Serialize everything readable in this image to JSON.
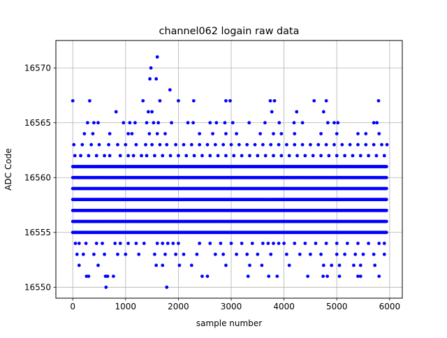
{
  "chart_data": {
    "type": "scatter",
    "title": "channel062 logain raw data",
    "xlabel": "sample number",
    "ylabel": "ADC Code",
    "xlim": [
      -320,
      6240
    ],
    "ylim": [
      16549.0,
      16572.5
    ],
    "xticks": [
      0,
      1000,
      2000,
      3000,
      4000,
      5000,
      6000
    ],
    "yticks": [
      16550,
      16555,
      16560,
      16565,
      16570
    ],
    "xtick_labels": [
      "0",
      "1000",
      "2000",
      "3000",
      "4000",
      "5000",
      "6000"
    ],
    "ytick_labels": [
      "16550",
      "16555",
      "16560",
      "16565",
      "16570"
    ],
    "grid": true,
    "marker_color": "#0000ff",
    "n_samples": 5944,
    "dense_levels": [
      16555,
      16556,
      16557,
      16558,
      16559,
      16560,
      16561
    ],
    "sparse_levels": [
      {
        "y": 16554,
        "xs": [
          50,
          120,
          250,
          450,
          560,
          800,
          900,
          1050,
          1200,
          1350,
          1600,
          1700,
          1800,
          1900,
          2000,
          2400,
          2600,
          2800,
          3000,
          3200,
          3400,
          3600,
          3700,
          3800,
          3900,
          4000,
          4200,
          4400,
          4600,
          4800,
          5000,
          5200,
          5400,
          5600,
          5800,
          5900
        ]
      },
      {
        "y": 16553,
        "xs": [
          80,
          200,
          400,
          600,
          850,
          1000,
          1250,
          1550,
          1750,
          1950,
          2100,
          2350,
          2700,
          2850,
          3100,
          3300,
          3500,
          3750,
          4050,
          4300,
          4500,
          4700,
          5000,
          5150,
          5350,
          5500,
          5700,
          5900
        ]
      },
      {
        "y": 16552,
        "xs": [
          120,
          480,
          1580,
          1700,
          2020,
          2250,
          2900,
          3350,
          3580,
          4100,
          4750,
          4900,
          5050,
          5320,
          5450,
          5720
        ]
      },
      {
        "y": 16551,
        "xs": [
          260,
          300,
          620,
          660,
          770,
          2450,
          2550,
          3320,
          3710,
          3870,
          4450,
          4740,
          4820,
          5050,
          5400,
          5450,
          5800
        ]
      },
      {
        "y": 16550,
        "xs": [
          630,
          1780
        ]
      },
      {
        "y": 16562,
        "xs": [
          40,
          150,
          300,
          450,
          600,
          700,
          900,
          1050,
          1150,
          1300,
          1400,
          1550,
          1700,
          1850,
          2000,
          2150,
          2300,
          2450,
          2600,
          2750,
          2900,
          3050,
          3200,
          3350,
          3500,
          3650,
          3800,
          3950,
          4100,
          4250,
          4400,
          4550,
          4700,
          4850,
          5000,
          5150,
          5300,
          5450,
          5600,
          5750,
          5900
        ]
      },
      {
        "y": 16563,
        "xs": [
          20,
          180,
          350,
          500,
          680,
          850,
          1000,
          1200,
          1380,
          1500,
          1650,
          1780,
          1950,
          2100,
          2250,
          2400,
          2550,
          2700,
          2850,
          3000,
          3150,
          3300,
          3450,
          3600,
          3750,
          3900,
          4050,
          4200,
          4350,
          4500,
          4650,
          4800,
          4950,
          5100,
          5250,
          5400,
          5550,
          5700,
          5850,
          5950
        ]
      },
      {
        "y": 16564,
        "xs": [
          220,
          380,
          700,
          1050,
          1120,
          1450,
          1600,
          1750,
          2400,
          2650,
          2900,
          3100,
          3550,
          3800,
          3950,
          4200,
          4700,
          5000,
          5400,
          5550,
          5800
        ]
      },
      {
        "y": 16565,
        "xs": [
          280,
          400,
          480,
          960,
          1080,
          1180,
          1400,
          1530,
          1620,
          1870,
          2180,
          2280,
          2600,
          2720,
          2880,
          3030,
          3340,
          3640,
          3910,
          4190,
          4350,
          4830,
          4950,
          5020,
          5700,
          5760
        ]
      },
      {
        "y": 16566,
        "xs": [
          820,
          1430,
          1500,
          3770,
          4240,
          4750
        ]
      },
      {
        "y": 16567,
        "xs": [
          0,
          320,
          1330,
          1650,
          2000,
          2290,
          2900,
          2980,
          3740,
          3820,
          4570,
          4800,
          5790
        ]
      },
      {
        "y": 16568,
        "xs": [
          1840
        ]
      },
      {
        "y": 16569,
        "xs": [
          1460,
          1580
        ]
      },
      {
        "y": 16570,
        "xs": [
          1480
        ]
      },
      {
        "y": 16571,
        "xs": [
          1600
        ]
      }
    ]
  }
}
